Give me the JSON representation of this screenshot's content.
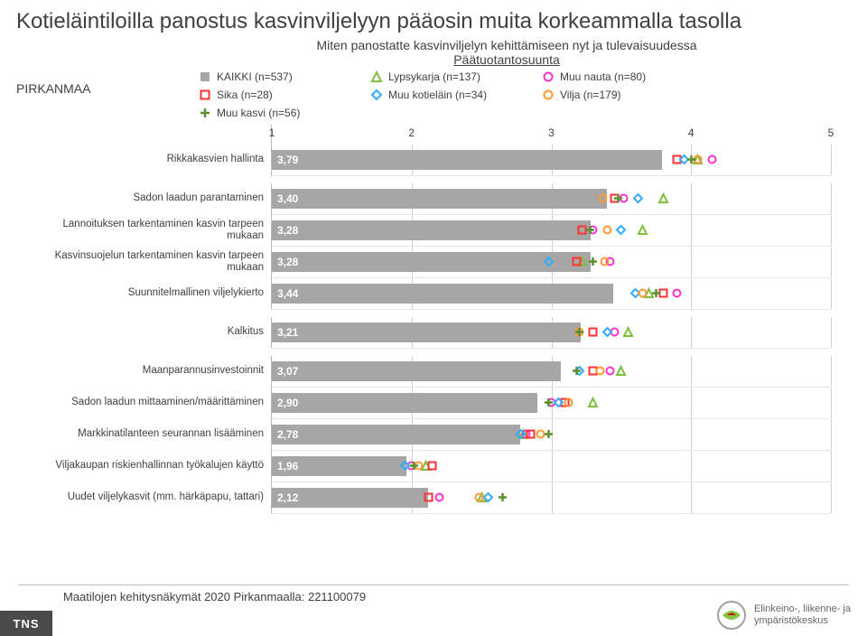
{
  "title": "Kotieläintiloilla panostus kasvinviljelyyn pääosin muita korkeammalla tasolla",
  "subtitle_line1": "Miten panostatte kasvinviljelyn kehittämiseen nyt ja tulevaisuudessa",
  "subtitle_line2": "Päätuotantosuunta",
  "region": "PIRKANMAA",
  "legend": [
    {
      "label": "KAIKKI (n=537)",
      "type": "square",
      "fill": "#a6a6a6"
    },
    {
      "label": "Lypsykarja (n=137)",
      "type": "triangle",
      "stroke": "#7fbf3f"
    },
    {
      "label": "Muu nauta (n=80)",
      "type": "circle",
      "stroke": "#ff33cc"
    },
    {
      "label": "Sika (n=28)",
      "type": "square-outline",
      "stroke": "#ff3333"
    },
    {
      "label": "Muu kotieläin (n=34)",
      "type": "diamond",
      "stroke": "#33aaff"
    },
    {
      "label": "Vilja (n=179)",
      "type": "circle",
      "stroke": "#ff9933"
    },
    {
      "label": "Muu kasvi (n=56)",
      "type": "plus",
      "stroke": "#5b8f2f"
    }
  ],
  "axis": {
    "min": 1,
    "max": 5,
    "ticks": [
      1,
      2,
      3,
      4,
      5
    ]
  },
  "chart": {
    "bar_color": "#a6a6a6",
    "rows": [
      {
        "label": "Rikkakasvien hallinta",
        "value": 3.79,
        "gap": false,
        "markers": [
          {
            "series": "Lypsykarja",
            "pos": 4.05
          },
          {
            "series": "Muu nauta",
            "pos": 4.15
          },
          {
            "series": "Sika",
            "pos": 3.9
          },
          {
            "series": "Muu kotieläin",
            "pos": 3.95
          },
          {
            "series": "Vilja",
            "pos": 4.05
          },
          {
            "series": "Muu kasvi",
            "pos": 4.0
          }
        ]
      },
      {
        "label": "Sadon laadun parantaminen",
        "value": 3.4,
        "gap": true,
        "markers": [
          {
            "series": "Lypsykarja",
            "pos": 3.8
          },
          {
            "series": "Muu nauta",
            "pos": 3.52
          },
          {
            "series": "Sika",
            "pos": 3.45
          },
          {
            "series": "Muu kotieläin",
            "pos": 3.62
          },
          {
            "series": "Vilja",
            "pos": 3.37
          },
          {
            "series": "Muu kasvi",
            "pos": 3.48
          }
        ]
      },
      {
        "label": "Lannoituksen tarkentaminen kasvin tarpeen mukaan",
        "value": 3.28,
        "gap": false,
        "markers": [
          {
            "series": "Lypsykarja",
            "pos": 3.65
          },
          {
            "series": "Muu nauta",
            "pos": 3.3
          },
          {
            "series": "Sika",
            "pos": 3.22
          },
          {
            "series": "Muu kotieläin",
            "pos": 3.5
          },
          {
            "series": "Vilja",
            "pos": 3.4
          },
          {
            "series": "Muu kasvi",
            "pos": 3.28
          }
        ]
      },
      {
        "label": "Kasvinsuojelun tarkentaminen kasvin tarpeen mukaan",
        "value": 3.28,
        "gap": false,
        "markers": [
          {
            "series": "Lypsykarja",
            "pos": 3.22
          },
          {
            "series": "Muu nauta",
            "pos": 3.42
          },
          {
            "series": "Sika",
            "pos": 3.18
          },
          {
            "series": "Muu kotieläin",
            "pos": 2.98
          },
          {
            "series": "Vilja",
            "pos": 3.38
          },
          {
            "series": "Muu kasvi",
            "pos": 3.3
          }
        ]
      },
      {
        "label": "Suunnitelmallinen viljelykierto",
        "value": 3.44,
        "gap": false,
        "markers": [
          {
            "series": "Lypsykarja",
            "pos": 3.7
          },
          {
            "series": "Muu nauta",
            "pos": 3.9
          },
          {
            "series": "Sika",
            "pos": 3.8
          },
          {
            "series": "Muu kotieläin",
            "pos": 3.6
          },
          {
            "series": "Vilja",
            "pos": 3.65
          },
          {
            "series": "Muu kasvi",
            "pos": 3.75
          }
        ]
      },
      {
        "label": "Kalkitus",
        "value": 3.21,
        "gap": true,
        "markers": [
          {
            "series": "Lypsykarja",
            "pos": 3.55
          },
          {
            "series": "Muu nauta",
            "pos": 3.45
          },
          {
            "series": "Sika",
            "pos": 3.3
          },
          {
            "series": "Muu kotieläin",
            "pos": 3.4
          },
          {
            "series": "Vilja",
            "pos": 3.2
          },
          {
            "series": "Muu kasvi",
            "pos": 3.2
          }
        ]
      },
      {
        "label": "Maanparannusinvestoinnit",
        "value": 3.07,
        "gap": true,
        "markers": [
          {
            "series": "Lypsykarja",
            "pos": 3.5
          },
          {
            "series": "Muu nauta",
            "pos": 3.42
          },
          {
            "series": "Sika",
            "pos": 3.3
          },
          {
            "series": "Muu kotieläin",
            "pos": 3.2
          },
          {
            "series": "Vilja",
            "pos": 3.35
          },
          {
            "series": "Muu kasvi",
            "pos": 3.18
          }
        ]
      },
      {
        "label": "Sadon laadun mittaaminen/määrittäminen",
        "value": 2.9,
        "gap": false,
        "markers": [
          {
            "series": "Lypsykarja",
            "pos": 3.3
          },
          {
            "series": "Muu nauta",
            "pos": 3.0
          },
          {
            "series": "Sika",
            "pos": 3.1
          },
          {
            "series": "Muu kotieläin",
            "pos": 3.05
          },
          {
            "series": "Vilja",
            "pos": 3.12
          },
          {
            "series": "Muu kasvi",
            "pos": 2.98
          }
        ]
      },
      {
        "label": "Markkinatilanteen seurannan lisääminen",
        "value": 2.78,
        "gap": false,
        "markers": [
          {
            "series": "Lypsykarja",
            "pos": 2.8
          },
          {
            "series": "Muu nauta",
            "pos": 2.82
          },
          {
            "series": "Sika",
            "pos": 2.85
          },
          {
            "series": "Muu kotieläin",
            "pos": 2.78
          },
          {
            "series": "Vilja",
            "pos": 2.92
          },
          {
            "series": "Muu kasvi",
            "pos": 2.98
          }
        ]
      },
      {
        "label": "Viljakaupan riskienhallinnan työkalujen käyttö",
        "value": 1.96,
        "gap": false,
        "markers": [
          {
            "series": "Lypsykarja",
            "pos": 2.1
          },
          {
            "series": "Muu nauta",
            "pos": 2.0
          },
          {
            "series": "Sika",
            "pos": 2.15
          },
          {
            "series": "Muu kotieläin",
            "pos": 1.95
          },
          {
            "series": "Vilja",
            "pos": 2.05
          },
          {
            "series": "Muu kasvi",
            "pos": 2.02
          }
        ]
      },
      {
        "label": "Uudet viljelykasvit (mm. härkäpapu, tattari)",
        "value": 2.12,
        "gap": false,
        "markers": [
          {
            "series": "Lypsykarja",
            "pos": 2.5
          },
          {
            "series": "Muu nauta",
            "pos": 2.2
          },
          {
            "series": "Sika",
            "pos": 2.12
          },
          {
            "series": "Muu kotieläin",
            "pos": 2.55
          },
          {
            "series": "Vilja",
            "pos": 2.48
          },
          {
            "series": "Muu kasvi",
            "pos": 2.65
          }
        ]
      }
    ]
  },
  "series_style": {
    "Lypsykarja": {
      "type": "triangle",
      "stroke": "#7fbf3f"
    },
    "Muu nauta": {
      "type": "circle",
      "stroke": "#ff33cc"
    },
    "Sika": {
      "type": "square-outline",
      "stroke": "#ff3333"
    },
    "Muu kotieläin": {
      "type": "diamond",
      "stroke": "#33aaff"
    },
    "Vilja": {
      "type": "circle",
      "stroke": "#ff9933"
    },
    "Muu kasvi": {
      "type": "plus",
      "stroke": "#5b8f2f"
    }
  },
  "footer_text": "Maatilojen kehitysnäkymät 2020 Pirkanmaalla: 221100079",
  "tns": "TNS",
  "logo_text": "Elinkeino-, liikenne- ja\nympäristökeskus"
}
